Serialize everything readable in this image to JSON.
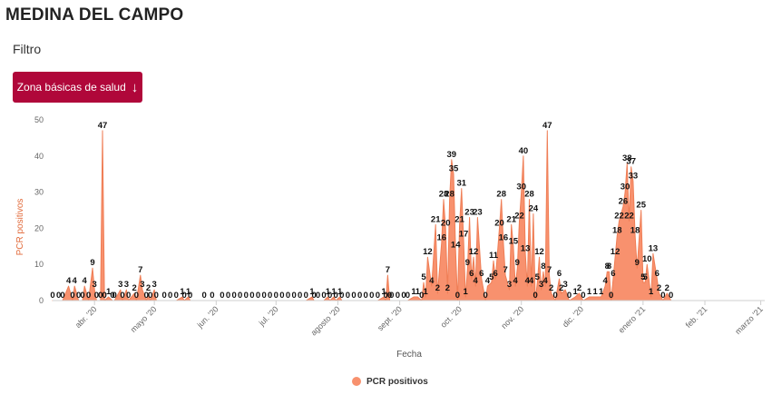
{
  "header": {
    "title": "MEDINA DEL CAMPO",
    "filter_label": "Filtro"
  },
  "filter_button": {
    "label": "Zona básicas de salud",
    "icon": "arrow-down-icon"
  },
  "colors": {
    "accent": "#b0073a",
    "series": "#f8916e",
    "series_line": "#ef7e56",
    "axis_title": "#e26c3d"
  },
  "chart_data": {
    "type": "area",
    "ylabel": "PCR positivos",
    "xlabel": "Fecha",
    "ylim": [
      0,
      50
    ],
    "yticks": [
      0,
      10,
      20,
      30,
      40,
      50
    ],
    "xlim": [
      "2020-03-11",
      "2021-03-03"
    ],
    "xticks": [
      {
        "date": "2020-04-01",
        "label": "abr. '20"
      },
      {
        "date": "2020-05-01",
        "label": "mayo '20"
      },
      {
        "date": "2020-06-01",
        "label": "jun. '20"
      },
      {
        "date": "2020-07-01",
        "label": "jul. '20"
      },
      {
        "date": "2020-08-01",
        "label": "agosto '20"
      },
      {
        "date": "2020-09-01",
        "label": "sept. '20"
      },
      {
        "date": "2020-10-01",
        "label": "oct. '20"
      },
      {
        "date": "2020-11-01",
        "label": "nov. '20"
      },
      {
        "date": "2020-12-01",
        "label": "dic. '20"
      },
      {
        "date": "2021-01-01",
        "label": "enero '21"
      },
      {
        "date": "2021-02-01",
        "label": "feb. '21"
      },
      {
        "date": "2021-03-01",
        "label": "marzo '21"
      }
    ],
    "legend": {
      "position": "bottom",
      "label": "PCR positivos"
    },
    "grid": false,
    "series": [
      {
        "name": "PCR positivos",
        "points": [
          [
            "2020-03-11",
            0
          ],
          [
            "2020-03-14",
            0
          ],
          [
            "2020-03-16",
            0
          ],
          [
            "2020-03-19",
            4
          ],
          [
            "2020-03-21",
            0
          ],
          [
            "2020-03-22",
            4
          ],
          [
            "2020-03-24",
            0
          ],
          [
            "2020-03-26",
            0
          ],
          [
            "2020-03-27",
            4
          ],
          [
            "2020-03-29",
            0
          ],
          [
            "2020-03-31",
            9
          ],
          [
            "2020-04-01",
            3
          ],
          [
            "2020-04-02",
            0
          ],
          [
            "2020-04-04",
            0
          ],
          [
            "2020-04-05",
            47
          ],
          [
            "2020-04-06",
            0
          ],
          [
            "2020-04-08",
            1
          ],
          [
            "2020-04-10",
            0
          ],
          [
            "2020-04-11",
            0
          ],
          [
            "2020-04-14",
            3
          ],
          [
            "2020-04-15",
            0
          ],
          [
            "2020-04-17",
            3
          ],
          [
            "2020-04-18",
            0
          ],
          [
            "2020-04-21",
            2
          ],
          [
            "2020-04-22",
            0
          ],
          [
            "2020-04-24",
            7
          ],
          [
            "2020-04-25",
            3
          ],
          [
            "2020-04-27",
            0
          ],
          [
            "2020-04-28",
            2
          ],
          [
            "2020-04-29",
            0
          ],
          [
            "2020-05-01",
            3
          ],
          [
            "2020-05-02",
            0
          ],
          [
            "2020-05-06",
            0
          ],
          [
            "2020-05-09",
            0
          ],
          [
            "2020-05-12",
            0
          ],
          [
            "2020-05-15",
            1
          ],
          [
            "2020-05-16",
            0
          ],
          [
            "2020-05-18",
            1
          ],
          [
            "2020-05-19",
            0
          ],
          [
            "2020-05-26",
            0
          ],
          [
            "2020-05-30",
            0
          ],
          [
            "2020-06-04",
            0
          ],
          [
            "2020-06-07",
            0
          ],
          [
            "2020-06-10",
            0
          ],
          [
            "2020-06-13",
            0
          ],
          [
            "2020-06-16",
            0
          ],
          [
            "2020-06-19",
            0
          ],
          [
            "2020-06-22",
            0
          ],
          [
            "2020-06-25",
            0
          ],
          [
            "2020-06-28",
            0
          ],
          [
            "2020-07-01",
            0
          ],
          [
            "2020-07-04",
            0
          ],
          [
            "2020-07-07",
            0
          ],
          [
            "2020-07-10",
            0
          ],
          [
            "2020-07-13",
            0
          ],
          [
            "2020-07-16",
            0
          ],
          [
            "2020-07-19",
            1
          ],
          [
            "2020-07-20",
            0
          ],
          [
            "2020-07-22",
            0
          ],
          [
            "2020-07-25",
            0
          ],
          [
            "2020-07-27",
            1
          ],
          [
            "2020-07-28",
            0
          ],
          [
            "2020-07-30",
            1
          ],
          [
            "2020-07-31",
            0
          ],
          [
            "2020-08-02",
            1
          ],
          [
            "2020-08-03",
            0
          ],
          [
            "2020-08-06",
            0
          ],
          [
            "2020-08-09",
            0
          ],
          [
            "2020-08-12",
            0
          ],
          [
            "2020-08-15",
            0
          ],
          [
            "2020-08-18",
            0
          ],
          [
            "2020-08-21",
            0
          ],
          [
            "2020-08-24",
            1
          ],
          [
            "2020-08-25",
            0
          ],
          [
            "2020-08-26",
            7
          ],
          [
            "2020-08-27",
            0
          ],
          [
            "2020-08-28",
            0
          ],
          [
            "2020-08-31",
            0
          ],
          [
            "2020-09-03",
            0
          ],
          [
            "2020-09-05",
            0
          ],
          [
            "2020-09-08",
            1
          ],
          [
            "2020-09-10",
            1
          ],
          [
            "2020-09-12",
            0
          ],
          [
            "2020-09-13",
            5
          ],
          [
            "2020-09-14",
            1
          ],
          [
            "2020-09-15",
            12
          ],
          [
            "2020-09-17",
            4
          ],
          [
            "2020-09-19",
            21
          ],
          [
            "2020-09-20",
            2
          ],
          [
            "2020-09-22",
            16
          ],
          [
            "2020-09-23",
            28
          ],
          [
            "2020-09-24",
            20
          ],
          [
            "2020-09-25",
            2
          ],
          [
            "2020-09-26",
            28
          ],
          [
            "2020-09-27",
            39
          ],
          [
            "2020-09-28",
            35
          ],
          [
            "2020-09-29",
            14
          ],
          [
            "2020-09-30",
            0
          ],
          [
            "2020-10-01",
            21
          ],
          [
            "2020-10-02",
            31
          ],
          [
            "2020-10-03",
            17
          ],
          [
            "2020-10-04",
            1
          ],
          [
            "2020-10-05",
            9
          ],
          [
            "2020-10-06",
            23
          ],
          [
            "2020-10-07",
            6
          ],
          [
            "2020-10-08",
            12
          ],
          [
            "2020-10-09",
            4
          ],
          [
            "2020-10-10",
            23
          ],
          [
            "2020-10-12",
            6
          ],
          [
            "2020-10-14",
            0
          ],
          [
            "2020-10-15",
            4
          ],
          [
            "2020-10-17",
            5
          ],
          [
            "2020-10-18",
            11
          ],
          [
            "2020-10-19",
            6
          ],
          [
            "2020-10-21",
            20
          ],
          [
            "2020-10-22",
            28
          ],
          [
            "2020-10-23",
            16
          ],
          [
            "2020-10-24",
            7
          ],
          [
            "2020-10-26",
            3
          ],
          [
            "2020-10-27",
            21
          ],
          [
            "2020-10-28",
            15
          ],
          [
            "2020-10-29",
            4
          ],
          [
            "2020-10-30",
            9
          ],
          [
            "2020-10-31",
            22
          ],
          [
            "2020-11-01",
            30
          ],
          [
            "2020-11-02",
            40
          ],
          [
            "2020-11-03",
            13
          ],
          [
            "2020-11-04",
            4
          ],
          [
            "2020-11-05",
            28
          ],
          [
            "2020-11-06",
            4
          ],
          [
            "2020-11-07",
            24
          ],
          [
            "2020-11-08",
            0
          ],
          [
            "2020-11-09",
            5
          ],
          [
            "2020-11-10",
            12
          ],
          [
            "2020-11-11",
            3
          ],
          [
            "2020-11-12",
            8
          ],
          [
            "2020-11-13",
            4
          ],
          [
            "2020-11-14",
            47
          ],
          [
            "2020-11-15",
            7
          ],
          [
            "2020-11-16",
            2
          ],
          [
            "2020-11-18",
            0
          ],
          [
            "2020-11-20",
            6
          ],
          [
            "2020-11-21",
            2
          ],
          [
            "2020-11-23",
            3
          ],
          [
            "2020-11-25",
            0
          ],
          [
            "2020-11-28",
            1
          ],
          [
            "2020-11-30",
            2
          ],
          [
            "2020-12-02",
            0
          ],
          [
            "2020-12-05",
            1
          ],
          [
            "2020-12-08",
            1
          ],
          [
            "2020-12-11",
            1
          ],
          [
            "2020-12-13",
            4
          ],
          [
            "2020-12-14",
            8
          ],
          [
            "2020-12-15",
            8
          ],
          [
            "2020-12-16",
            0
          ],
          [
            "2020-12-17",
            6
          ],
          [
            "2020-12-18",
            12
          ],
          [
            "2020-12-19",
            18
          ],
          [
            "2020-12-20",
            22
          ],
          [
            "2020-12-22",
            26
          ],
          [
            "2020-12-23",
            30
          ],
          [
            "2020-12-24",
            38
          ],
          [
            "2020-12-25",
            22
          ],
          [
            "2020-12-26",
            37
          ],
          [
            "2020-12-27",
            33
          ],
          [
            "2020-12-28",
            18
          ],
          [
            "2020-12-29",
            9
          ],
          [
            "2020-12-31",
            25
          ],
          [
            "2021-01-01",
            5
          ],
          [
            "2021-01-02",
            5
          ],
          [
            "2021-01-03",
            10
          ],
          [
            "2021-01-05",
            1
          ],
          [
            "2021-01-06",
            13
          ],
          [
            "2021-01-08",
            6
          ],
          [
            "2021-01-09",
            2
          ],
          [
            "2021-01-11",
            0
          ],
          [
            "2021-01-13",
            2
          ],
          [
            "2021-01-15",
            0
          ]
        ]
      }
    ]
  }
}
